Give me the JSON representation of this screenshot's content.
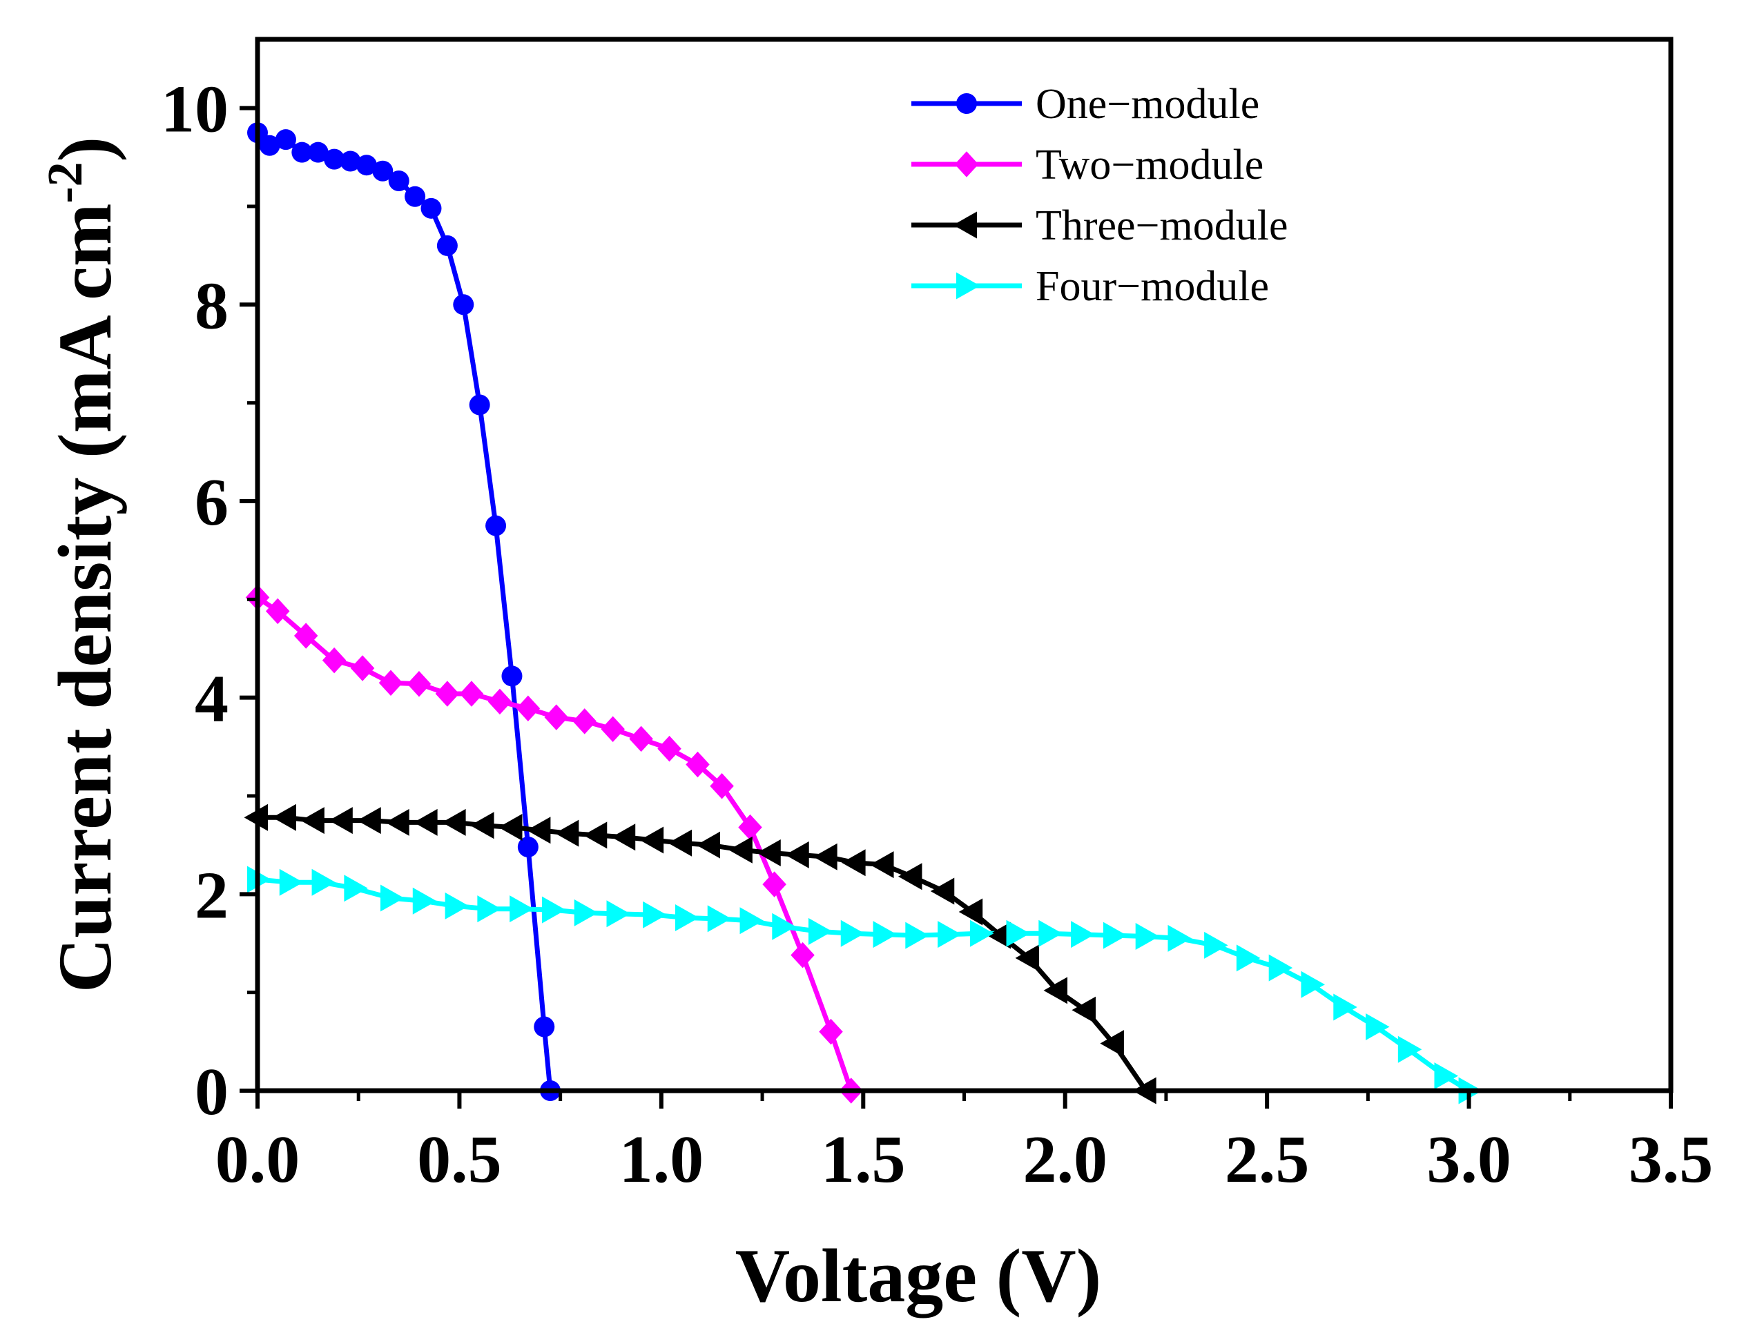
{
  "chart_data": {
    "type": "line",
    "title": "",
    "xlabel": "Voltage (V)",
    "ylabel": "Current density (mA cm",
    "ylabel_superscript": "-2",
    "ylabel_close": ")",
    "xlim": [
      0,
      3.5
    ],
    "ylim": [
      0,
      10.7
    ],
    "xticks": [
      0.0,
      0.5,
      1.0,
      1.5,
      2.0,
      2.5,
      3.0,
      3.5
    ],
    "xtick_labels": [
      "0.0",
      "0.5",
      "1.0",
      "1.5",
      "2.0",
      "2.5",
      "3.0",
      "3.5"
    ],
    "yticks": [
      0,
      2,
      4,
      6,
      8,
      10
    ],
    "ytick_labels": [
      "0",
      "2",
      "4",
      "6",
      "8",
      "10"
    ],
    "grid": false,
    "legend_position": "top-right",
    "series": [
      {
        "name": "One−module",
        "color": "#0000ff",
        "marker": "circle",
        "points": [
          [
            0.0,
            9.75
          ],
          [
            0.03,
            9.62
          ],
          [
            0.07,
            9.68
          ],
          [
            0.11,
            9.55
          ],
          [
            0.15,
            9.55
          ],
          [
            0.19,
            9.48
          ],
          [
            0.23,
            9.46
          ],
          [
            0.27,
            9.42
          ],
          [
            0.31,
            9.36
          ],
          [
            0.35,
            9.26
          ],
          [
            0.39,
            9.1
          ],
          [
            0.43,
            8.98
          ],
          [
            0.47,
            8.6
          ],
          [
            0.51,
            8.0
          ],
          [
            0.55,
            6.98
          ],
          [
            0.59,
            5.75
          ],
          [
            0.63,
            4.22
          ],
          [
            0.67,
            2.48
          ],
          [
            0.71,
            0.65
          ],
          [
            0.725,
            0.0
          ]
        ]
      },
      {
        "name": "Two−module",
        "color": "#ff00ff",
        "marker": "diamond",
        "points": [
          [
            0.0,
            5.02
          ],
          [
            0.05,
            4.88
          ],
          [
            0.12,
            4.63
          ],
          [
            0.19,
            4.38
          ],
          [
            0.26,
            4.3
          ],
          [
            0.33,
            4.15
          ],
          [
            0.4,
            4.14
          ],
          [
            0.47,
            4.04
          ],
          [
            0.53,
            4.04
          ],
          [
            0.6,
            3.96
          ],
          [
            0.67,
            3.89
          ],
          [
            0.74,
            3.8
          ],
          [
            0.81,
            3.76
          ],
          [
            0.88,
            3.68
          ],
          [
            0.95,
            3.58
          ],
          [
            1.02,
            3.48
          ],
          [
            1.09,
            3.32
          ],
          [
            1.15,
            3.1
          ],
          [
            1.22,
            2.68
          ],
          [
            1.28,
            2.1
          ],
          [
            1.35,
            1.38
          ],
          [
            1.42,
            0.6
          ],
          [
            1.47,
            0.0
          ]
        ]
      },
      {
        "name": "Three−module",
        "color": "#000000",
        "marker": "triangle-left",
        "points": [
          [
            0.0,
            2.78
          ],
          [
            0.07,
            2.78
          ],
          [
            0.14,
            2.75
          ],
          [
            0.21,
            2.75
          ],
          [
            0.28,
            2.75
          ],
          [
            0.35,
            2.73
          ],
          [
            0.42,
            2.73
          ],
          [
            0.49,
            2.73
          ],
          [
            0.56,
            2.7
          ],
          [
            0.63,
            2.68
          ],
          [
            0.7,
            2.65
          ],
          [
            0.77,
            2.62
          ],
          [
            0.84,
            2.6
          ],
          [
            0.91,
            2.58
          ],
          [
            0.98,
            2.55
          ],
          [
            1.05,
            2.52
          ],
          [
            1.12,
            2.5
          ],
          [
            1.2,
            2.45
          ],
          [
            1.27,
            2.42
          ],
          [
            1.34,
            2.4
          ],
          [
            1.41,
            2.38
          ],
          [
            1.48,
            2.32
          ],
          [
            1.55,
            2.3
          ],
          [
            1.62,
            2.18
          ],
          [
            1.7,
            2.03
          ],
          [
            1.77,
            1.82
          ],
          [
            1.84,
            1.58
          ],
          [
            1.91,
            1.35
          ],
          [
            1.98,
            1.02
          ],
          [
            2.05,
            0.82
          ],
          [
            2.12,
            0.48
          ],
          [
            2.2,
            0.0
          ]
        ]
      },
      {
        "name": "Four−module",
        "color": "#00ffff",
        "marker": "triangle-right",
        "points": [
          [
            0.0,
            2.15
          ],
          [
            0.08,
            2.12
          ],
          [
            0.16,
            2.12
          ],
          [
            0.24,
            2.06
          ],
          [
            0.33,
            1.96
          ],
          [
            0.41,
            1.93
          ],
          [
            0.49,
            1.88
          ],
          [
            0.57,
            1.85
          ],
          [
            0.65,
            1.85
          ],
          [
            0.73,
            1.84
          ],
          [
            0.81,
            1.81
          ],
          [
            0.89,
            1.8
          ],
          [
            0.98,
            1.79
          ],
          [
            1.06,
            1.76
          ],
          [
            1.14,
            1.75
          ],
          [
            1.22,
            1.73
          ],
          [
            1.3,
            1.67
          ],
          [
            1.39,
            1.62
          ],
          [
            1.47,
            1.6
          ],
          [
            1.55,
            1.59
          ],
          [
            1.63,
            1.58
          ],
          [
            1.71,
            1.59
          ],
          [
            1.79,
            1.6
          ],
          [
            1.88,
            1.6
          ],
          [
            1.96,
            1.6
          ],
          [
            2.04,
            1.59
          ],
          [
            2.12,
            1.58
          ],
          [
            2.2,
            1.57
          ],
          [
            2.28,
            1.55
          ],
          [
            2.37,
            1.48
          ],
          [
            2.45,
            1.35
          ],
          [
            2.53,
            1.25
          ],
          [
            2.61,
            1.08
          ],
          [
            2.69,
            0.85
          ],
          [
            2.77,
            0.65
          ],
          [
            2.85,
            0.42
          ],
          [
            2.94,
            0.15
          ],
          [
            3.0,
            0.0
          ]
        ]
      }
    ]
  }
}
